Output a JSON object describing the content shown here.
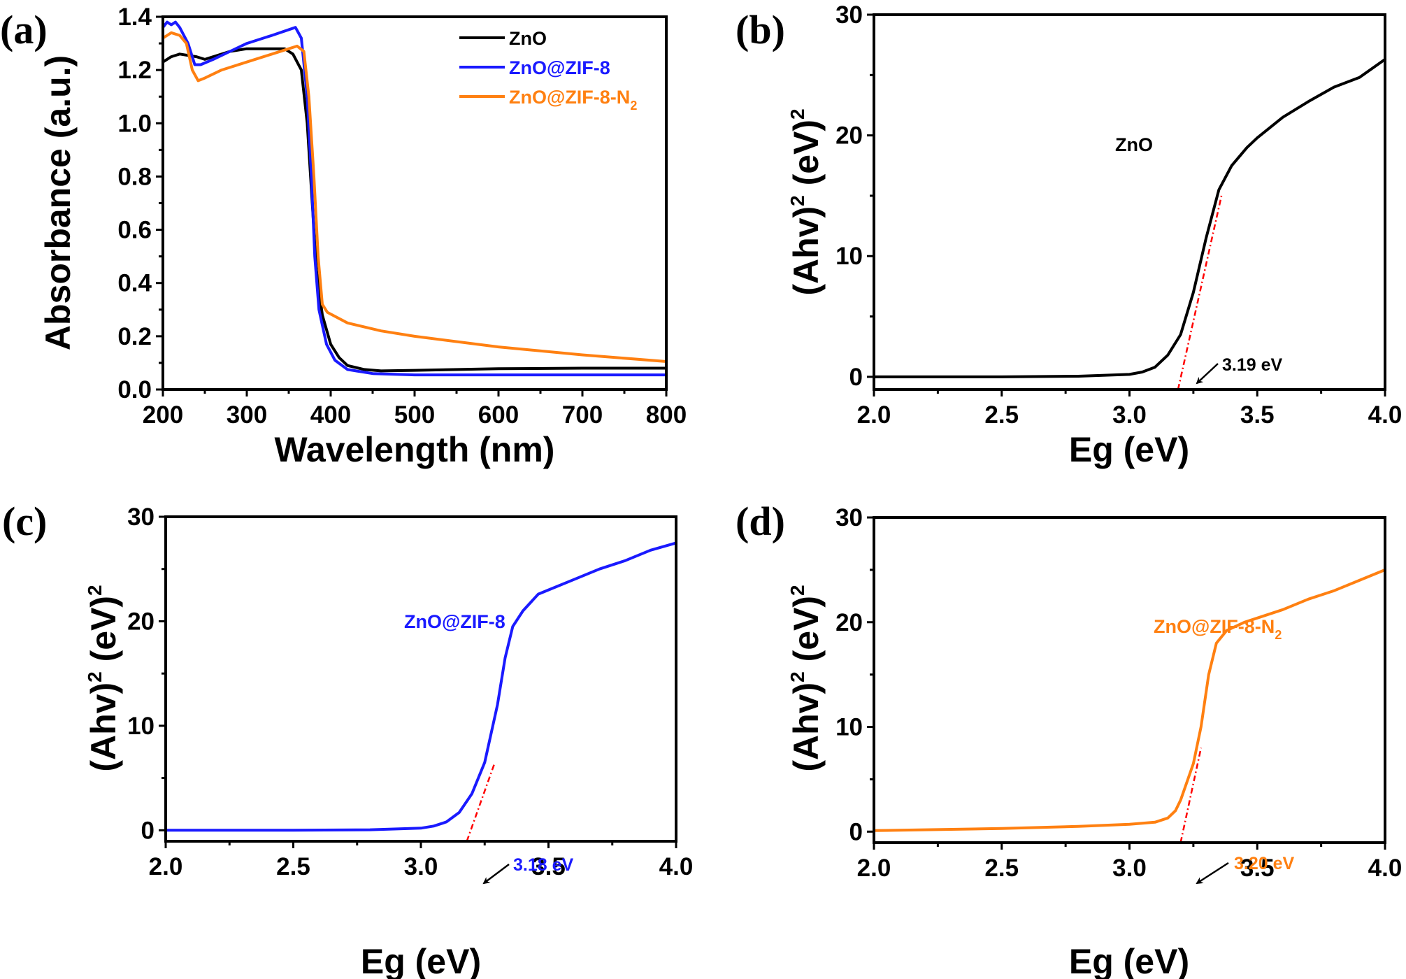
{
  "figure": {
    "colors": {
      "ZnO": "#000000",
      "ZnO@ZIF-8": "#1a1aff",
      "ZnO@ZIF-8-N2": "#ff8011",
      "tangent": "#ff0000",
      "axis": "#000000"
    }
  },
  "chart_data": [
    {
      "id": "a",
      "panel_label": "(a)",
      "type": "line",
      "title": "",
      "xlabel": "Wavelength (nm)",
      "ylabel": "Absorbance (a.u.)",
      "xlim": [
        200,
        800
      ],
      "ylim": [
        0.0,
        1.4
      ],
      "xticks": [
        200,
        300,
        400,
        500,
        600,
        700,
        800
      ],
      "xtick_labels": [
        "200",
        "300",
        "400",
        "500",
        "600",
        "700",
        "800"
      ],
      "yticks": [
        0.0,
        0.2,
        0.4,
        0.6,
        0.8,
        1.0,
        1.2,
        1.4
      ],
      "ytick_labels": [
        "0.0",
        "0.2",
        "0.4",
        "0.6",
        "0.8",
        "1.0",
        "1.2",
        "1.4"
      ],
      "grid": false,
      "legend_position": "top-right",
      "series": [
        {
          "name": "ZnO",
          "legend_label": "ZnO",
          "legend_subscript": "",
          "color_key": "ZnO",
          "x": [
            200,
            210,
            220,
            240,
            250,
            280,
            300,
            330,
            345,
            355,
            365,
            372,
            378,
            383,
            390,
            400,
            410,
            420,
            440,
            460,
            500,
            600,
            700,
            800
          ],
          "y": [
            1.23,
            1.25,
            1.26,
            1.25,
            1.24,
            1.27,
            1.28,
            1.28,
            1.28,
            1.26,
            1.2,
            1.0,
            0.7,
            0.45,
            0.28,
            0.17,
            0.12,
            0.09,
            0.075,
            0.07,
            0.072,
            0.078,
            0.08,
            0.08
          ]
        },
        {
          "name": "ZnO@ZIF-8",
          "legend_label": "ZnO@ZIF-8",
          "legend_subscript": "",
          "color_key": "ZnO@ZIF-8",
          "x": [
            200,
            205,
            210,
            215,
            220,
            230,
            238,
            245,
            260,
            280,
            300,
            330,
            358,
            365,
            372,
            377,
            381,
            386,
            395,
            405,
            420,
            450,
            500,
            600,
            700,
            800
          ],
          "y": [
            1.36,
            1.38,
            1.37,
            1.38,
            1.36,
            1.3,
            1.22,
            1.22,
            1.24,
            1.27,
            1.3,
            1.33,
            1.36,
            1.32,
            1.1,
            0.8,
            0.5,
            0.3,
            0.17,
            0.11,
            0.075,
            0.06,
            0.055,
            0.055,
            0.055,
            0.055
          ]
        },
        {
          "name": "ZnO@ZIF-8-N2",
          "legend_label": "ZnO@ZIF-8-N",
          "legend_subscript": "2",
          "color_key": "ZnO@ZIF-8-N2",
          "x": [
            200,
            210,
            220,
            228,
            235,
            242,
            250,
            270,
            300,
            330,
            350,
            360,
            368,
            374,
            380,
            385,
            390,
            396,
            420,
            460,
            500,
            600,
            700,
            800
          ],
          "y": [
            1.32,
            1.34,
            1.33,
            1.3,
            1.2,
            1.16,
            1.17,
            1.2,
            1.23,
            1.26,
            1.28,
            1.29,
            1.27,
            1.1,
            0.8,
            0.5,
            0.32,
            0.29,
            0.25,
            0.22,
            0.2,
            0.16,
            0.13,
            0.105
          ]
        }
      ]
    },
    {
      "id": "b",
      "panel_label": "(b)",
      "type": "line",
      "title": "",
      "xlabel": "Eg (eV)",
      "ylabel_main": "(Ahv)",
      "ylabel_sup1": "2",
      "ylabel_mid": " (eV)",
      "ylabel_sup2": "2",
      "xlim": [
        2.0,
        4.0
      ],
      "ylim": [
        -1.05,
        30
      ],
      "xticks": [
        2.0,
        2.5,
        3.0,
        3.5,
        4.0
      ],
      "xtick_labels": [
        "2.0",
        "2.5",
        "3.0",
        "3.5",
        "4.0"
      ],
      "yticks": [
        0,
        10,
        20,
        30
      ],
      "ytick_labels": [
        "0",
        "10",
        "20",
        "30"
      ],
      "grid": false,
      "sample_label": "ZnO",
      "sample_label_sub": "",
      "sample_label_color_key": "ZnO",
      "annotation": "3.19 eV",
      "annotation_color_key": "ZnO",
      "band_gap_eV": 3.19,
      "tangent": {
        "x": [
          3.19,
          3.36
        ],
        "y": [
          -1.05,
          15.0
        ]
      },
      "series": [
        {
          "name": "ZnO",
          "color_key": "ZnO",
          "x": [
            2.0,
            2.5,
            2.8,
            3.0,
            3.05,
            3.1,
            3.15,
            3.2,
            3.25,
            3.3,
            3.35,
            3.4,
            3.46,
            3.5,
            3.6,
            3.7,
            3.8,
            3.9,
            4.0
          ],
          "y": [
            0.0,
            0.0,
            0.05,
            0.2,
            0.4,
            0.8,
            1.8,
            3.5,
            7.0,
            11.5,
            15.5,
            17.5,
            19.0,
            19.8,
            21.5,
            22.8,
            24.0,
            24.8,
            26.3
          ]
        }
      ]
    },
    {
      "id": "c",
      "panel_label": "(c)",
      "type": "line",
      "title": "",
      "xlabel": "Eg (eV)",
      "ylabel_main": "(Ahv)",
      "ylabel_sup1": "2",
      "ylabel_mid": " (eV)",
      "ylabel_sup2": "2",
      "xlim": [
        2.0,
        4.0
      ],
      "ylim": [
        -1.05,
        30
      ],
      "xticks": [
        2.0,
        2.5,
        3.0,
        3.5,
        4.0
      ],
      "xtick_labels": [
        "2.0",
        "2.5",
        "3.0",
        "3.5",
        "4.0"
      ],
      "yticks": [
        0,
        10,
        20,
        30
      ],
      "ytick_labels": [
        "0",
        "10",
        "20",
        "30"
      ],
      "grid": false,
      "sample_label": "ZnO@ZIF-8",
      "sample_label_sub": "",
      "sample_label_color_key": "ZnO@ZIF-8",
      "annotation": "3.18 eV",
      "annotation_color_key": "ZnO@ZIF-8",
      "band_gap_eV": 3.18,
      "tangent": {
        "x": [
          3.18,
          3.29
        ],
        "y": [
          -1.05,
          6.5
        ]
      },
      "series": [
        {
          "name": "ZnO@ZIF-8",
          "color_key": "ZnO@ZIF-8",
          "x": [
            2.0,
            2.5,
            2.8,
            3.0,
            3.05,
            3.1,
            3.15,
            3.2,
            3.25,
            3.3,
            3.33,
            3.36,
            3.4,
            3.46,
            3.5,
            3.6,
            3.7,
            3.8,
            3.9,
            4.0
          ],
          "y": [
            0.0,
            0.0,
            0.05,
            0.2,
            0.4,
            0.8,
            1.7,
            3.5,
            6.5,
            12.0,
            16.5,
            19.5,
            21.0,
            22.6,
            23.0,
            24.0,
            25.0,
            25.8,
            26.8,
            27.5
          ]
        }
      ]
    },
    {
      "id": "d",
      "panel_label": "(d)",
      "type": "line",
      "title": "",
      "xlabel": "Eg (eV)",
      "ylabel_main": "(Ahv)",
      "ylabel_sup1": "2",
      "ylabel_mid": " (eV)",
      "ylabel_sup2": "2",
      "xlim": [
        2.0,
        4.0
      ],
      "ylim": [
        -1.05,
        30
      ],
      "xticks": [
        2.0,
        2.5,
        3.0,
        3.5,
        4.0
      ],
      "xtick_labels": [
        "2.0",
        "2.5",
        "3.0",
        "3.5",
        "4.0"
      ],
      "yticks": [
        0,
        10,
        20,
        30
      ],
      "ytick_labels": [
        "0",
        "10",
        "20",
        "30"
      ],
      "grid": false,
      "sample_label": "ZnO@ZIF-8-N",
      "sample_label_sub": "2",
      "sample_label_color_key": "ZnO@ZIF-8-N2",
      "annotation": "3.20 eV",
      "annotation_color_key": "ZnO@ZIF-8-N2",
      "band_gap_eV": 3.2,
      "tangent": {
        "x": [
          3.2,
          3.28
        ],
        "y": [
          -1.05,
          8.0
        ]
      },
      "series": [
        {
          "name": "ZnO@ZIF-8-N2",
          "color_key": "ZnO@ZIF-8-N2",
          "x": [
            2.0,
            2.5,
            2.8,
            3.0,
            3.1,
            3.15,
            3.18,
            3.2,
            3.25,
            3.28,
            3.31,
            3.34,
            3.38,
            3.45,
            3.5,
            3.6,
            3.7,
            3.8,
            3.9,
            4.0
          ],
          "y": [
            0.1,
            0.3,
            0.5,
            0.7,
            0.9,
            1.3,
            2.0,
            3.0,
            6.5,
            10.0,
            15.0,
            18.0,
            19.2,
            20.0,
            20.4,
            21.2,
            22.2,
            23.0,
            24.0,
            25.0
          ]
        }
      ]
    }
  ]
}
